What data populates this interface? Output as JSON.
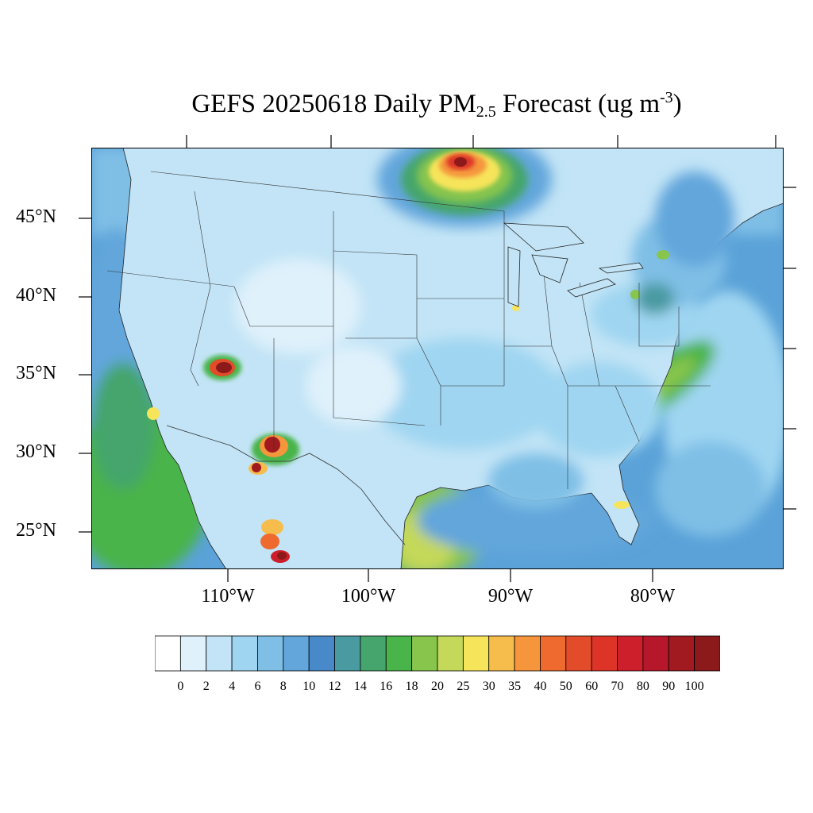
{
  "title": {
    "main": "GEFS 20250618 Daily PM",
    "sub": "2.5",
    "after": " Forecast (ug m",
    "sup": "-3",
    "close": ")"
  },
  "map": {
    "lat_labels": [
      "45°N",
      "40°N",
      "35°N",
      "30°N",
      "25°N"
    ],
    "lon_labels": [
      "110°W",
      "100°W",
      "90°W",
      "80°W"
    ],
    "region": "Contiguous United States",
    "land_base_color": "#c2e4f6",
    "ocean_base_color": "#5aa2d8",
    "hotspots": [
      {
        "name": "canadian-smoke-plume",
        "peak_ugm3": 100
      },
      {
        "name": "arizona-fire-north",
        "peak_ugm3": 100
      },
      {
        "name": "new-mexico-fire",
        "peak_ugm3": 100
      },
      {
        "name": "sonora-fire",
        "peak_ugm3": 90
      },
      {
        "name": "chihuahua-fires",
        "peak_ugm3": 100
      },
      {
        "name": "gulf-of-mexico-dust",
        "peak_ugm3": 25
      },
      {
        "name": "atlantic-dust",
        "peak_ugm3": 20
      }
    ]
  },
  "colorbar": {
    "labels": [
      "0",
      "2",
      "4",
      "6",
      "8",
      "10",
      "12",
      "14",
      "16",
      "18",
      "20",
      "25",
      "30",
      "35",
      "40",
      "50",
      "60",
      "70",
      "80",
      "90",
      "100"
    ],
    "colors": [
      "#ffffff",
      "#dff1fb",
      "#c2e4f6",
      "#9fd5f1",
      "#7fbfe6",
      "#62a6db",
      "#4889c9",
      "#4a9aa2",
      "#45a56c",
      "#49b44a",
      "#87c54d",
      "#c4d85a",
      "#f6e45a",
      "#f6bd4d",
      "#f5963c",
      "#ef6a2e",
      "#e34c2a",
      "#dd3427",
      "#cd1f2b",
      "#b7172a",
      "#a01a1f",
      "#8c1a1a"
    ]
  }
}
